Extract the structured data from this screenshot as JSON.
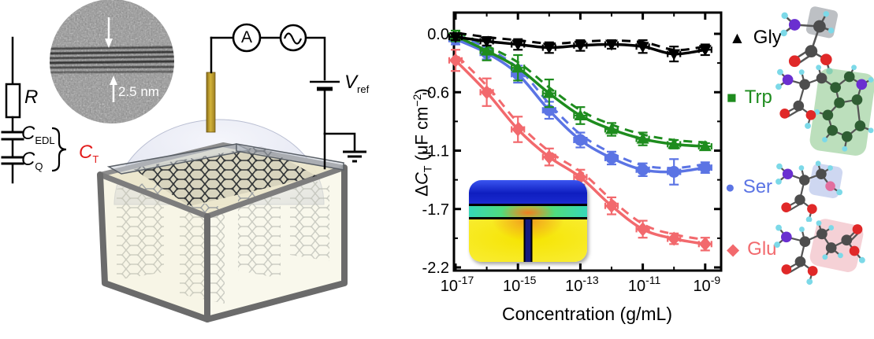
{
  "tem": {
    "scale_label": "2.5 nm"
  },
  "circuit": {
    "resistor_label": "R",
    "cap_edl_main": "C",
    "cap_edl_sub": "EDL",
    "cap_q_main": "C",
    "cap_q_sub": "Q",
    "cap_total_main": "C",
    "cap_total_sub": "T",
    "ammeter_label": "A",
    "vref_main": "V",
    "vref_sub": "ref",
    "accent_red": "#e21b1b"
  },
  "chart_data": {
    "type": "scatter-line",
    "x_scale": "log",
    "xlabel": "Concentration (g/mL)",
    "ylabel_parts": {
      "delta": "Δ",
      "c": "C",
      "sub": "T",
      "rest": " (μF cm",
      "sup": "−2",
      "close": ")"
    },
    "ylim": [
      -2.2,
      0
    ],
    "grid": false,
    "legend_position": "right-outside",
    "x_tick_base": "10",
    "x_exponents": [
      -17,
      -16,
      -15,
      -14,
      -13,
      -12,
      -11,
      -10,
      -9
    ],
    "x_tick_exponents": [
      -17,
      -15,
      -13,
      -11,
      -9
    ],
    "x_minor_exponents": [
      -16,
      -14,
      -12,
      -10
    ],
    "y_ticks": [
      {
        "value": 0.0,
        "label": "0.0"
      },
      {
        "value": -0.55,
        "label": "-0.6"
      },
      {
        "value": -1.1,
        "label": "-1.1"
      },
      {
        "value": -1.65,
        "label": "-1.7"
      },
      {
        "value": -2.2,
        "label": "-2.2"
      }
    ],
    "series": [
      {
        "name": "Glu",
        "color": "#f2696d",
        "marker": "diamond",
        "legend_marker": "◆",
        "values": [
          -0.25,
          -0.55,
          -0.9,
          -1.16,
          -1.35,
          -1.62,
          -1.84,
          -1.93,
          -1.98
        ],
        "errors": [
          0.1,
          0.13,
          0.12,
          0.08,
          0.07,
          0.08,
          0.08,
          0.05,
          0.06
        ]
      },
      {
        "name": "Ser",
        "color": "#5b74e4",
        "marker": "circle",
        "legend_marker": "●",
        "values": [
          -0.05,
          -0.18,
          -0.38,
          -0.72,
          -1.0,
          -1.17,
          -1.28,
          -1.3,
          -1.26
        ],
        "errors": [
          0.05,
          0.06,
          0.08,
          0.08,
          0.07,
          0.06,
          0.06,
          0.12,
          0.05
        ]
      },
      {
        "name": "Trp",
        "color": "#1e8c1e",
        "marker": "triangle-up",
        "legend_marker": "■",
        "values": [
          -0.02,
          -0.16,
          -0.32,
          -0.56,
          -0.77,
          -0.9,
          -0.99,
          -1.04,
          -1.06
        ],
        "errors": [
          0.05,
          0.09,
          0.12,
          0.13,
          0.08,
          0.06,
          0.06,
          0.04,
          0.03
        ]
      },
      {
        "name": "Gly",
        "color": "#000000",
        "marker": "triangle-down",
        "legend_marker": "▲",
        "values": [
          -0.03,
          -0.07,
          -0.1,
          -0.13,
          -0.11,
          -0.1,
          -0.12,
          -0.19,
          -0.15
        ],
        "errors": [
          0.03,
          0.04,
          0.05,
          0.05,
          0.05,
          0.04,
          0.06,
          0.07,
          0.05
        ]
      }
    ],
    "legend_order": [
      "Gly",
      "Trp",
      "Ser",
      "Glu"
    ],
    "inset_colors": {
      "top_band": "#1626c8",
      "mid_band": "#35d8a0",
      "body": "#f6e400",
      "channel_line": "#151a7e",
      "hot_glow": "#f08a28"
    }
  }
}
